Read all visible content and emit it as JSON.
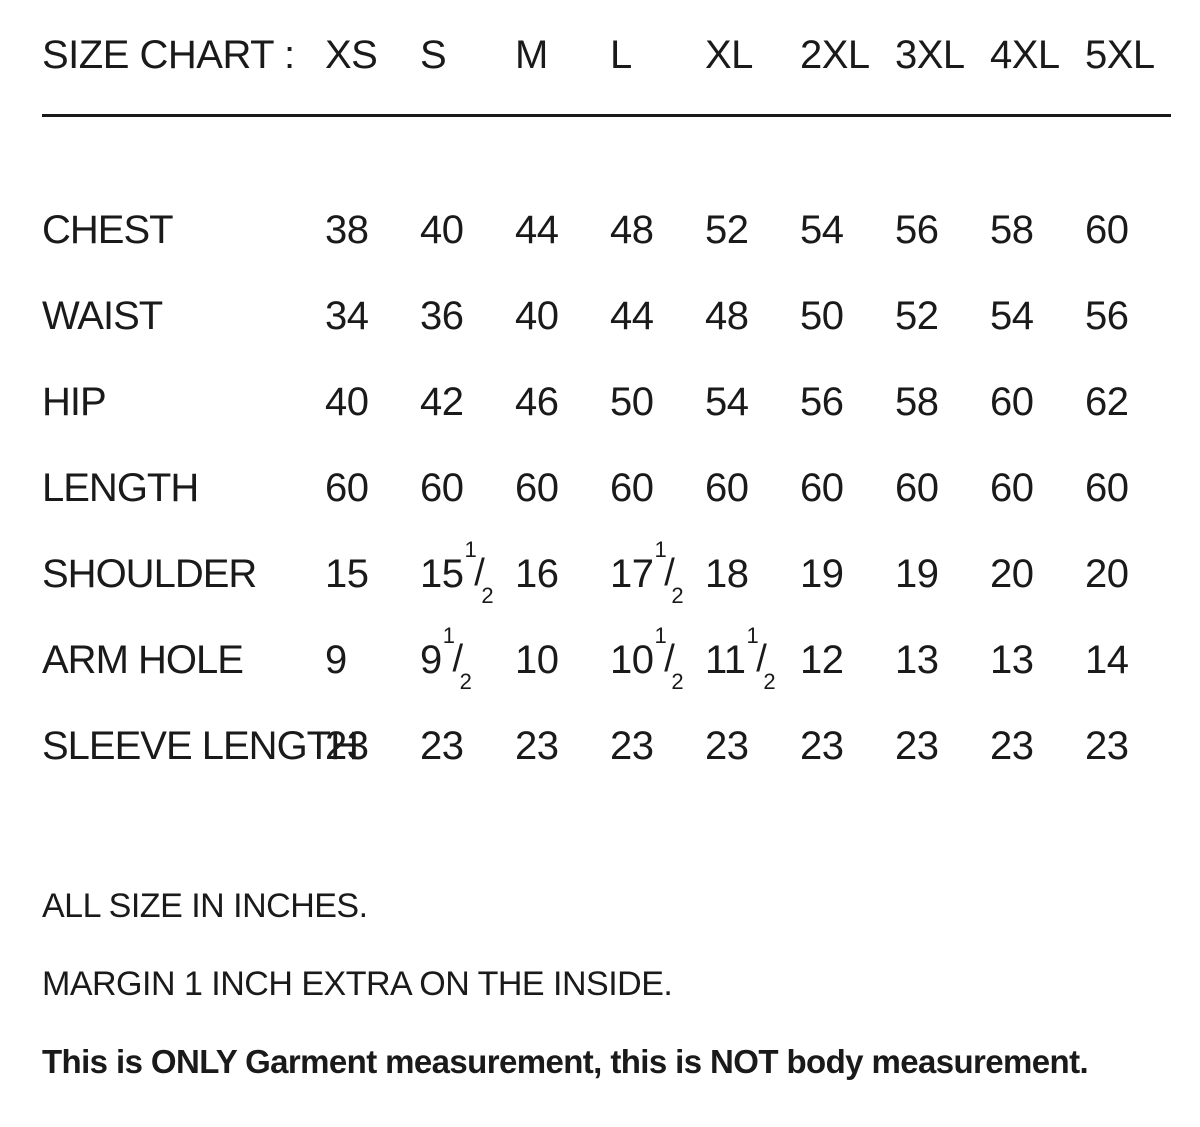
{
  "page": {
    "title": "SIZE CHART :",
    "notes": [
      {
        "text": "ALL SIZE IN INCHES.",
        "bold": false
      },
      {
        "text": "MARGIN 1 INCH EXTRA ON THE INSIDE.",
        "bold": false
      },
      {
        "text": "This is ONLY Garment measurement, this is NOT body measurement.",
        "bold": true
      }
    ]
  },
  "table": {
    "size_columns": [
      "XS",
      "S",
      "M",
      "L",
      "XL",
      "2XL",
      "3XL",
      "4XL",
      "5XL"
    ],
    "rows": [
      {
        "label": "CHEST",
        "values": [
          "38",
          "40",
          "44",
          "48",
          "52",
          "54",
          "56",
          "58",
          "60"
        ]
      },
      {
        "label": "WAIST",
        "values": [
          "34",
          "36",
          "40",
          "44",
          "48",
          "50",
          "52",
          "54",
          "56"
        ]
      },
      {
        "label": "HIP",
        "values": [
          "40",
          "42",
          "46",
          "50",
          "54",
          "56",
          "58",
          "60",
          "62"
        ]
      },
      {
        "label": "LENGTH",
        "values": [
          "60",
          "60",
          "60",
          "60",
          "60",
          "60",
          "60",
          "60",
          "60"
        ]
      },
      {
        "label": "SHOULDER",
        "values": [
          "15",
          "15 1/2",
          "16",
          "17 1/2",
          "18",
          "19",
          "19",
          "20",
          "20"
        ]
      },
      {
        "label": "ARM HOLE",
        "values": [
          "9",
          "9 1/2",
          "10",
          "10 1/2",
          "11 1/2",
          "12",
          "13",
          "13",
          "14"
        ]
      },
      {
        "label": "SLEEVE LENGTH",
        "values": [
          "23",
          "23",
          "23",
          "23",
          "23",
          "23",
          "23",
          "23",
          "23"
        ]
      }
    ]
  },
  "colors": {
    "background": "#ffffff",
    "text": "#1a1a1a",
    "rule": "#191919"
  }
}
